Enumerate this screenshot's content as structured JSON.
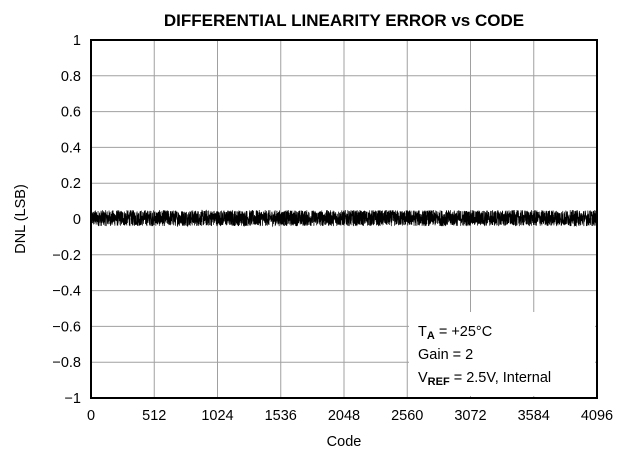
{
  "chart_data": {
    "type": "line",
    "title": "DIFFERENTIAL LINEARITY ERROR vs CODE",
    "xlabel": "Code",
    "ylabel": "DNL (LSB)",
    "xlim": [
      0,
      4096
    ],
    "ylim": [
      -1,
      1
    ],
    "x_ticks": [
      "0",
      "512",
      "1024",
      "1536",
      "2048",
      "2560",
      "3072",
      "3584",
      "4096"
    ],
    "y_ticks": [
      "1",
      "0.8",
      "0.6",
      "0.4",
      "0.2",
      "0",
      "−0.2",
      "−0.4",
      "−0.6",
      "−0.8",
      "−1"
    ],
    "grid": true,
    "series": [
      {
        "x_range": [
          0,
          4095
        ],
        "dnl_band": [
          -0.04,
          0.05
        ],
        "color": "#000000"
      }
    ],
    "annotation": {
      "line1": {
        "main": "T",
        "sub": "A",
        "rest": " = +25°C"
      },
      "line2": {
        "text": "Gain = 2"
      },
      "line3": {
        "main": "V",
        "sub": "REF",
        "rest": " = 2.5V, Internal"
      }
    }
  }
}
